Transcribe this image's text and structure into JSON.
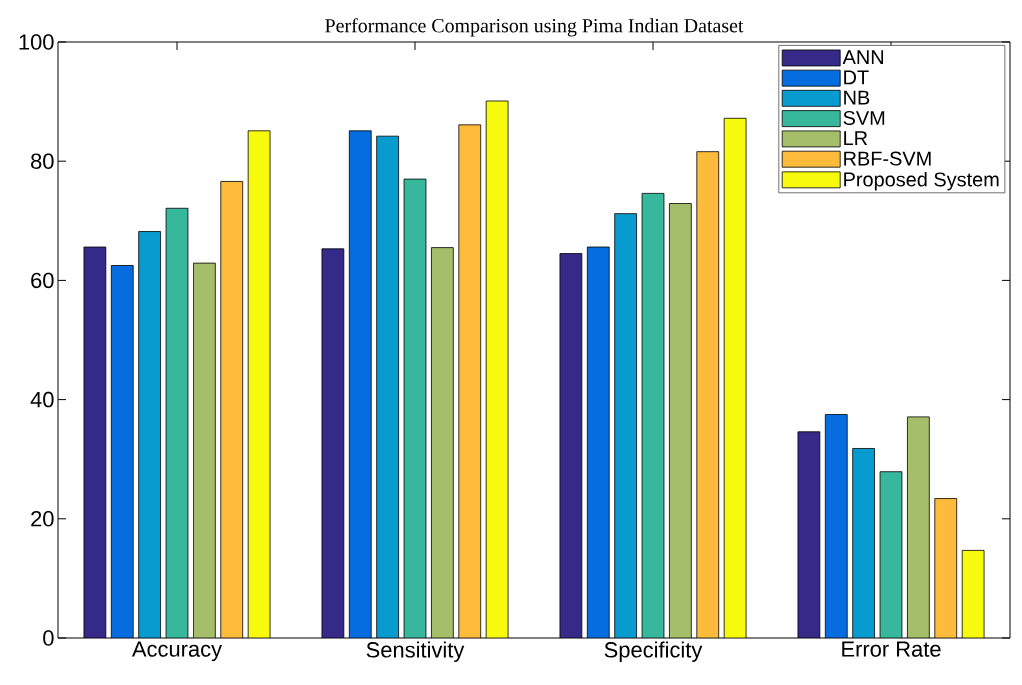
{
  "chart_data": {
    "type": "bar",
    "title": "Performance Comparison using Pima Indian Dataset",
    "categories": [
      "Accuracy",
      "Sensitivity",
      "Specificity",
      "Error Rate"
    ],
    "series": [
      {
        "name": "ANN",
        "color": "#352a87",
        "values": [
          65.6,
          65.3,
          64.5,
          34.6
        ]
      },
      {
        "name": "DT",
        "color": "#056de0",
        "values": [
          62.5,
          85.1,
          65.6,
          37.5
        ]
      },
      {
        "name": "NB",
        "color": "#089bd0",
        "values": [
          68.2,
          84.2,
          71.2,
          31.8
        ]
      },
      {
        "name": "SVM",
        "color": "#37b89d",
        "values": [
          72.1,
          77.0,
          74.6,
          27.9
        ]
      },
      {
        "name": "LR",
        "color": "#a5be6a",
        "values": [
          62.9,
          65.5,
          72.9,
          37.1
        ]
      },
      {
        "name": "RBF-SVM",
        "color": "#fdbb3c",
        "values": [
          76.6,
          86.1,
          81.6,
          23.4
        ]
      },
      {
        "name": "Proposed System",
        "color": "#f8fa0d",
        "values": [
          85.1,
          90.1,
          87.2,
          14.7
        ]
      }
    ],
    "ylim": [
      0,
      100
    ],
    "yticks": [
      0,
      20,
      40,
      60,
      80,
      100
    ],
    "legend": "top right"
  }
}
